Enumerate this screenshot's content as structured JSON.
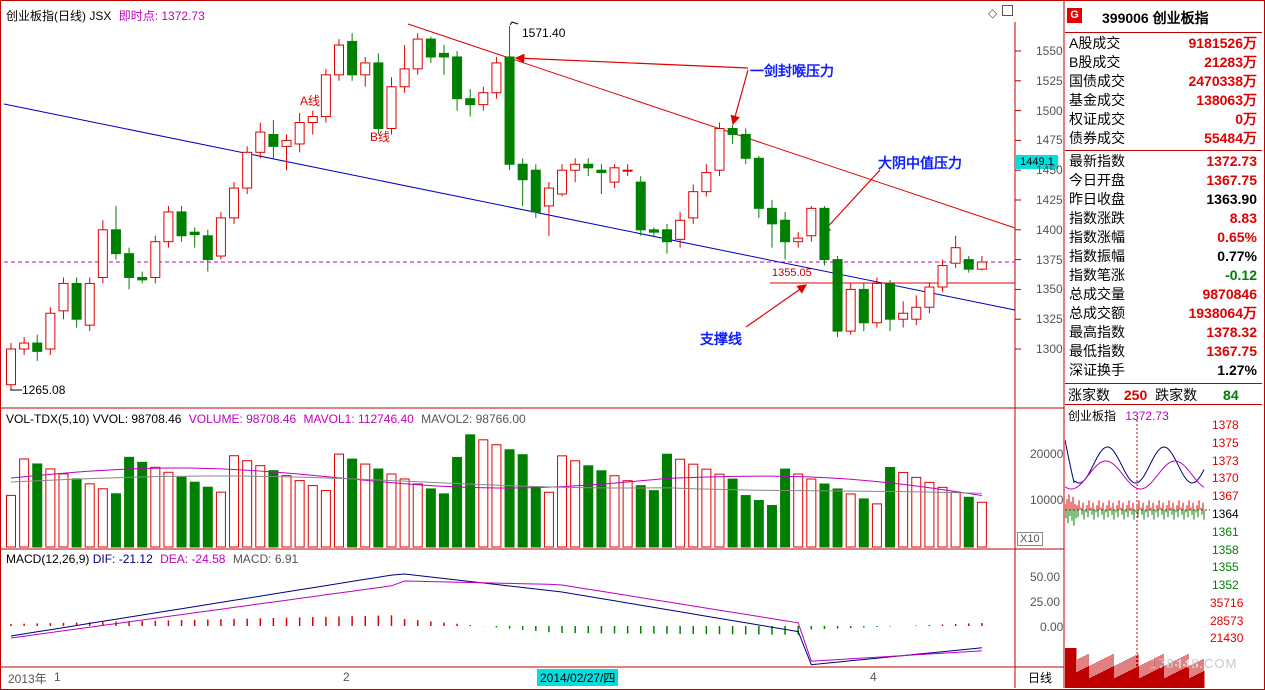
{
  "main_chart": {
    "title": "创业板指(日线) JSX",
    "realtime_label": "即时点:",
    "realtime_value": "1372.73",
    "high_marker": "1571.40",
    "low_marker": "1265.08",
    "support_price_label": "1355.05",
    "current_price_box": "1449.1",
    "y_ticks": [
      "1550",
      "1525",
      "1500",
      "1475",
      "1450",
      "1425",
      "1400",
      "1375",
      "1350",
      "1325",
      "1300"
    ],
    "wave_labels": {
      "a": "A线",
      "b": "B线"
    },
    "annotations": {
      "sword_pressure": "一剑封喉压力",
      "yin_pressure": "大阴中值压力",
      "support": "支撑线"
    }
  },
  "volume_panel": {
    "title": "VOL-TDX(5,10)",
    "vvol_label": "VVOL: 98708.46",
    "volume_label": "VOLUME: 98708.46",
    "mavol1_label": "MAVOL1: 112746.40",
    "mavol2_label": "MAVOL2: 98766.00",
    "y_ticks": [
      "20000",
      "10000"
    ],
    "unit": "X10"
  },
  "macd_panel": {
    "title": "MACD(12,26,9)",
    "dif_label": "DIF: -21.12",
    "dea_label": "DEA: -24.58",
    "macd_label": "MACD: 6.91",
    "y_ticks": [
      "50.00",
      "25.00",
      "0.00"
    ]
  },
  "time_axis": {
    "labels": [
      "2013年",
      "1",
      "2",
      "4"
    ],
    "highlight_date": "2014/02/27/四",
    "period": "日线"
  },
  "quote_panel": {
    "badge": "G",
    "code_name": "399006 创业板指",
    "rows": [
      {
        "label": "A股成交",
        "value": "9181526",
        "unit": "万",
        "color": "red"
      },
      {
        "label": "B股成交",
        "value": "21283",
        "unit": "万",
        "color": "red"
      },
      {
        "label": "国债成交",
        "value": "2470338",
        "unit": "万",
        "color": "red"
      },
      {
        "label": "基金成交",
        "value": "138063",
        "unit": "万",
        "color": "red"
      },
      {
        "label": "权证成交",
        "value": "0",
        "unit": "万",
        "color": "red"
      },
      {
        "label": "债券成交",
        "value": "55484",
        "unit": "万",
        "color": "red"
      },
      {
        "label": "最新指数",
        "value": "1372.73",
        "unit": "",
        "color": "red"
      },
      {
        "label": "今日开盘",
        "value": "1367.75",
        "unit": "",
        "color": "red"
      },
      {
        "label": "昨日收盘",
        "value": "1363.90",
        "unit": "",
        "color": "black"
      },
      {
        "label": "指数涨跌",
        "value": "8.83",
        "unit": "",
        "color": "red"
      },
      {
        "label": "指数涨幅",
        "value": "0.65%",
        "unit": "",
        "color": "red"
      },
      {
        "label": "指数振幅",
        "value": "0.77%",
        "unit": "",
        "color": "black"
      },
      {
        "label": "指数笔涨",
        "value": "-0.12",
        "unit": "",
        "color": "green"
      },
      {
        "label": "总成交量",
        "value": "9870846",
        "unit": "",
        "color": "red"
      },
      {
        "label": "总成交额",
        "value": "1938064",
        "unit": "万",
        "color": "red"
      },
      {
        "label": "最高指数",
        "value": "1378.32",
        "unit": "",
        "color": "red"
      },
      {
        "label": "最低指数",
        "value": "1367.75",
        "unit": "",
        "color": "red"
      },
      {
        "label": "深证换手",
        "value": "1.27%",
        "unit": "",
        "color": "black"
      }
    ],
    "up_label": "涨家数",
    "up_count": "250",
    "down_label": "跌家数",
    "down_count": "84"
  },
  "mini_chart": {
    "title": "创业板指",
    "value": "1372.73",
    "price_ticks": [
      "1378",
      "1375",
      "1373",
      "1370",
      "1367",
      "1364",
      "1361",
      "1358",
      "1355",
      "1352"
    ],
    "volume_ticks": [
      "35716",
      "28573",
      "21430"
    ]
  },
  "watermark": "178448.COM",
  "colors": {
    "up": "#e00000",
    "down": "#008000",
    "support_line": "#0000c0",
    "pressure_line": "#e00000",
    "annotation": "#1020ff"
  }
}
